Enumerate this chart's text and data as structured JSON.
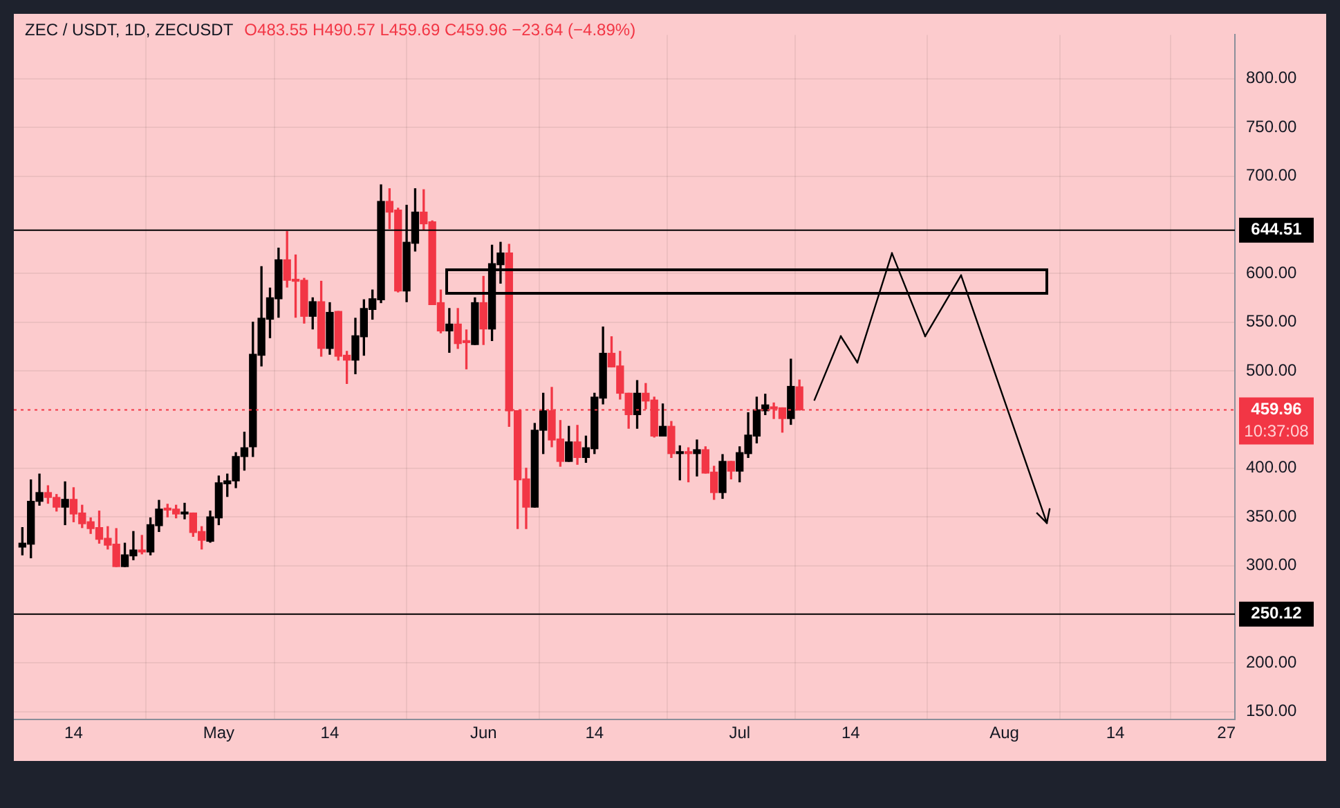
{
  "chart_data": {
    "type": "candlestick",
    "title": "ZEC / USDT, 1D, ZECUSDT",
    "annotations": [
      "O483.55 H490.57 L459.69 C459.96 −23.64 (−4.89%)",
      "10:37:08"
    ],
    "x": [
      "--04-08",
      "--04-09",
      "--04-10",
      "--04-11",
      "--04-12",
      "--04-13",
      "--04-14",
      "--04-15",
      "--04-16",
      "--04-17",
      "--04-18",
      "--04-19",
      "--04-20",
      "--04-21",
      "--04-22",
      "--04-23",
      "--04-24",
      "--04-25",
      "--04-26",
      "--04-27",
      "--04-28",
      "--04-29",
      "--04-30",
      "--05-01",
      "--05-02",
      "--05-03",
      "--05-04",
      "--05-05",
      "--05-06",
      "--05-07",
      "--05-08",
      "--05-09",
      "--05-10",
      "--05-11",
      "--05-12",
      "--05-13",
      "--05-14",
      "--05-15",
      "--05-16",
      "--05-17",
      "--05-18",
      "--05-19",
      "--05-20",
      "--05-21",
      "--05-22",
      "--05-23",
      "--05-24",
      "--05-25",
      "--05-26",
      "--05-27",
      "--05-28",
      "--05-29",
      "--05-30",
      "--05-31",
      "--06-01",
      "--06-02",
      "--06-03",
      "--06-04",
      "--06-05",
      "--06-06",
      "--06-07",
      "--06-08",
      "--06-09",
      "--06-10",
      "--06-11",
      "--06-12",
      "--06-13",
      "--06-14",
      "--06-15",
      "--06-16",
      "--06-17",
      "--06-18",
      "--06-19",
      "--06-20",
      "--06-21",
      "--06-22",
      "--06-23",
      "--06-24",
      "--06-25",
      "--06-26",
      "--06-27",
      "--06-28",
      "--06-29",
      "--06-30",
      "--07-01",
      "--07-02",
      "--07-03",
      "--07-04",
      "--07-05",
      "--07-06",
      "--07-07",
      "--07-08"
    ],
    "ohlc": [
      [
        319,
        339,
        311,
        323
      ],
      [
        322,
        388,
        308,
        366
      ],
      [
        366,
        394,
        362,
        375
      ],
      [
        375,
        382,
        364,
        370
      ],
      [
        370,
        373,
        356,
        360
      ],
      [
        360,
        386,
        342,
        368
      ],
      [
        368,
        380,
        345,
        353
      ],
      [
        354,
        362,
        339,
        343
      ],
      [
        345,
        349,
        333,
        338
      ],
      [
        339,
        356,
        323,
        327
      ],
      [
        328,
        340,
        317,
        321
      ],
      [
        322,
        338,
        299,
        299
      ],
      [
        299,
        323,
        299,
        311
      ],
      [
        310,
        335,
        306,
        316
      ],
      [
        316,
        331,
        312,
        314
      ],
      [
        314,
        349,
        311,
        342
      ],
      [
        341,
        367,
        335,
        358
      ],
      [
        359,
        363,
        350,
        357
      ],
      [
        358,
        362,
        349,
        353
      ],
      [
        353,
        364,
        348,
        355
      ],
      [
        354,
        354,
        330,
        334
      ],
      [
        335,
        340,
        317,
        326
      ],
      [
        325,
        356,
        324,
        350
      ],
      [
        349,
        392,
        342,
        385
      ],
      [
        384,
        394,
        371,
        387
      ],
      [
        387,
        416,
        380,
        412
      ],
      [
        412,
        437,
        398,
        421
      ],
      [
        422,
        550,
        412,
        517
      ],
      [
        516,
        607,
        505,
        554
      ],
      [
        553,
        585,
        534,
        575
      ],
      [
        574,
        626,
        555,
        614
      ],
      [
        614,
        643,
        586,
        593
      ],
      [
        594,
        619,
        555,
        592
      ],
      [
        593,
        595,
        549,
        556
      ],
      [
        556,
        575,
        543,
        571
      ],
      [
        571,
        592,
        515,
        523
      ],
      [
        523,
        570,
        517,
        560
      ],
      [
        561,
        561,
        511,
        515
      ],
      [
        516,
        520,
        487,
        511
      ],
      [
        511,
        554,
        497,
        536
      ],
      [
        535,
        573,
        516,
        564
      ],
      [
        563,
        583,
        553,
        574
      ],
      [
        573,
        691,
        570,
        674
      ],
      [
        674,
        687,
        646,
        663
      ],
      [
        665,
        667,
        581,
        582
      ],
      [
        582,
        670,
        571,
        632
      ],
      [
        631,
        687,
        623,
        663
      ],
      [
        663,
        686,
        645,
        651
      ],
      [
        653,
        654,
        568,
        568
      ],
      [
        570,
        583,
        539,
        541
      ],
      [
        541,
        564,
        519,
        548
      ],
      [
        548,
        564,
        523,
        528
      ],
      [
        531,
        542,
        502,
        529
      ],
      [
        527,
        575,
        527,
        570
      ],
      [
        570,
        597,
        527,
        543
      ],
      [
        543,
        629,
        531,
        610
      ],
      [
        609,
        632,
        590,
        621
      ],
      [
        621,
        630,
        443,
        459
      ],
      [
        459,
        459,
        338,
        388
      ],
      [
        389,
        400,
        338,
        360
      ],
      [
        360,
        446,
        360,
        439
      ],
      [
        439,
        477,
        415,
        459
      ],
      [
        459,
        483,
        422,
        429
      ],
      [
        430,
        449,
        402,
        407
      ],
      [
        407,
        443,
        407,
        427
      ],
      [
        427,
        444,
        404,
        411
      ],
      [
        411,
        433,
        406,
        421
      ],
      [
        420,
        477,
        415,
        473
      ],
      [
        472,
        545,
        466,
        518
      ],
      [
        518,
        535,
        504,
        504
      ],
      [
        505,
        520,
        471,
        477
      ],
      [
        477,
        477,
        441,
        455
      ],
      [
        455,
        490,
        441,
        477
      ],
      [
        477,
        487,
        461,
        469
      ],
      [
        470,
        473,
        432,
        433
      ],
      [
        433,
        466,
        433,
        443
      ],
      [
        443,
        448,
        411,
        415
      ],
      [
        415,
        423,
        388,
        417
      ],
      [
        417,
        421,
        386,
        415
      ],
      [
        415,
        429,
        392,
        419
      ],
      [
        419,
        422,
        395,
        395
      ],
      [
        396,
        402,
        368,
        375
      ],
      [
        375,
        414,
        369,
        407
      ],
      [
        407,
        407,
        389,
        397
      ],
      [
        397,
        422,
        386,
        416
      ],
      [
        415,
        457,
        411,
        434
      ],
      [
        433,
        473,
        426,
        460
      ],
      [
        459,
        476,
        455,
        465
      ],
      [
        463,
        467,
        451,
        461
      ],
      [
        462,
        462,
        437,
        451
      ],
      [
        451,
        512,
        445,
        484
      ],
      [
        483.55,
        490.57,
        459.69,
        459.96
      ]
    ],
    "colors": [
      "#000000",
      "#000000",
      "#000000",
      "#f23645",
      "#f23645",
      "#000000",
      "#f23645",
      "#f23645",
      "#f23645",
      "#f23645",
      "#f23645",
      "#f23645",
      "#000000",
      "#000000",
      "#f23645",
      "#000000",
      "#000000",
      "#f23645",
      "#f23645",
      "#000000",
      "#f23645",
      "#f23645",
      "#000000",
      "#000000",
      "#000000",
      "#000000",
      "#000000",
      "#000000",
      "#000000",
      "#000000",
      "#000000",
      "#f23645",
      "#f23645",
      "#f23645",
      "#000000",
      "#f23645",
      "#000000",
      "#f23645",
      "#f23645",
      "#000000",
      "#000000",
      "#000000",
      "#000000",
      "#f23645",
      "#f23645",
      "#000000",
      "#000000",
      "#f23645",
      "#f23645",
      "#f23645",
      "#000000",
      "#f23645",
      "#f23645",
      "#000000",
      "#f23645",
      "#000000",
      "#000000",
      "#f23645",
      "#f23645",
      "#f23645",
      "#000000",
      "#000000",
      "#f23645",
      "#f23645",
      "#000000",
      "#f23645",
      "#000000",
      "#000000",
      "#000000",
      "#f23645",
      "#f23645",
      "#f23645",
      "#000000",
      "#f23645",
      "#f23645",
      "#000000",
      "#f23645",
      "#000000",
      "#f23645",
      "#000000",
      "#f23645",
      "#f23645",
      "#000000",
      "#f23645",
      "#000000",
      "#000000",
      "#000000",
      "#000000",
      "#f23645",
      "#f23645",
      "#000000",
      "#f23645"
    ],
    "xlim": [
      "--04-07",
      "--08-28"
    ],
    "xticks": [
      {
        "value": "--04-14",
        "label": "14"
      },
      {
        "value": "--05-01",
        "label": "May"
      },
      {
        "value": "--05-14",
        "label": "14"
      },
      {
        "value": "--06-01",
        "label": "Jun"
      },
      {
        "value": "--06-14",
        "label": "14"
      },
      {
        "value": "--07-01",
        "label": "Jul"
      },
      {
        "value": "--07-14",
        "label": "14"
      },
      {
        "value": "--08-01",
        "label": "Aug"
      },
      {
        "value": "--08-14",
        "label": "14"
      },
      {
        "value": "--08-27",
        "label": "27"
      }
    ],
    "ylim": [
      142,
      845
    ],
    "yticks": [
      {
        "value": 150,
        "label": "150.00"
      },
      {
        "value": 200,
        "label": "200.00"
      },
      {
        "value": 250,
        "label": null
      },
      {
        "value": 300,
        "label": "300.00"
      },
      {
        "value": 350,
        "label": "350.00"
      },
      {
        "value": 400,
        "label": "400.00"
      },
      {
        "value": 500,
        "label": "500.00"
      },
      {
        "value": 550,
        "label": "550.00"
      },
      {
        "value": 600,
        "label": "600.00"
      },
      {
        "value": 700,
        "label": "700.00"
      },
      {
        "value": 750,
        "label": "750.00"
      },
      {
        "value": 800,
        "label": "800.00"
      }
    ],
    "ref_lines": [
      {
        "axis": "y",
        "value": 644.51,
        "label": "644.51",
        "color": "#000000",
        "line_style": "solid"
      },
      {
        "axis": "y",
        "value": 250.12,
        "label": "250.12",
        "color": "#000000",
        "line_style": "solid"
      },
      {
        "axis": "y",
        "value": 459.96,
        "label": "459.96",
        "color": "#f23645",
        "line_style": "dotted"
      }
    ],
    "grid": true,
    "legend": false
  }
}
